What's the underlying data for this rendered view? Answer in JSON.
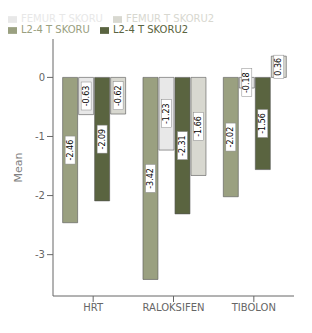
{
  "chart_data": {
    "type": "bar",
    "categories": [
      "HRT",
      "RALOKSIFEN",
      "TIBOLON"
    ],
    "series": [
      {
        "name": "L2-4 T SKORU",
        "color": "#9aA080",
        "values": [
          -2.46,
          -3.42,
          -2.02
        ]
      },
      {
        "name": "FEMUR T SKORU",
        "color": "#e8e8e8",
        "values": [
          -0.63,
          -1.23,
          -0.18
        ]
      },
      {
        "name": "L2-4 T SKORU2",
        "color": "#5a6440",
        "values": [
          -2.09,
          -2.31,
          -1.56
        ]
      },
      {
        "name": "FEMUR T SKORU2",
        "color": "#d8d8d0",
        "values": [
          -0.62,
          -1.66,
          0.36
        ]
      }
    ],
    "ylabel": "Mean",
    "ylim": [
      -3.7,
      0.65
    ],
    "yticks": [
      0,
      -1,
      -2,
      -3
    ],
    "grid": false,
    "legend": "upper left",
    "data_labels": true
  }
}
